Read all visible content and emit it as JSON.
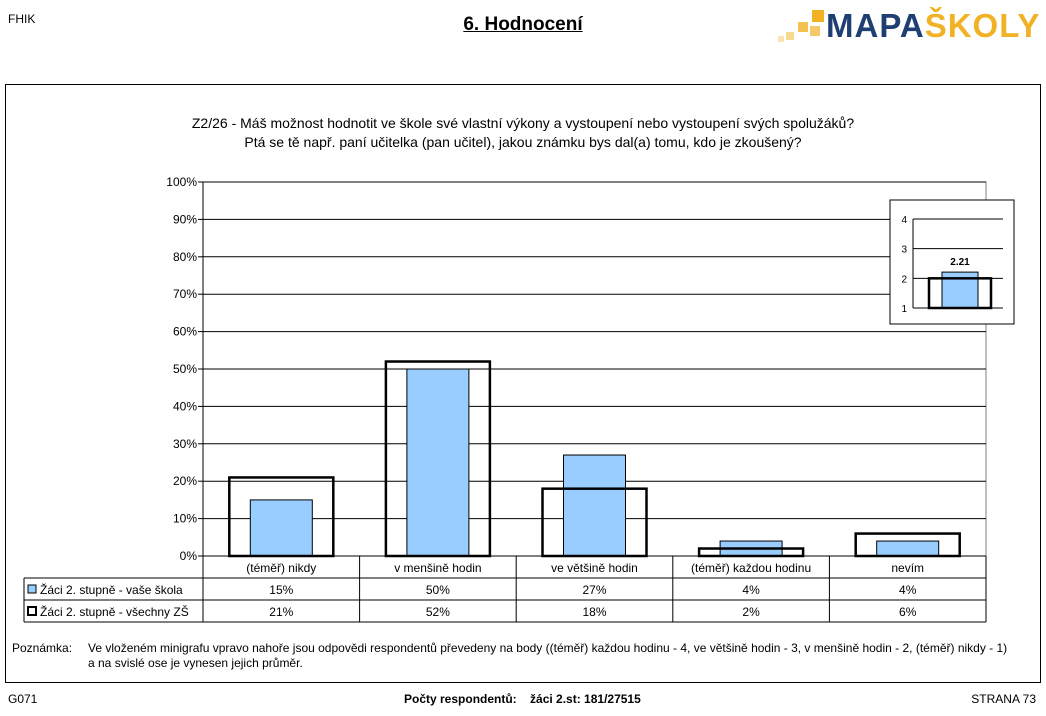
{
  "header": {
    "left_code": "FHIK",
    "title": "6. Hodnocení",
    "logo_part1": "MAPA",
    "logo_part2": "ŠKOLY"
  },
  "question": {
    "line1": "Z2/26 - Máš možnost hodnotit ve škole své vlastní výkony a vystoupení nebo vystoupení svých spolužáků?",
    "line2": "Ptá se tě např. paní učitelka (pan učitel), jakou známku bys dal(a) tomu, kdo je zkoušený?"
  },
  "chart_data": [
    {
      "type": "bar",
      "categories": [
        "(téměř) nikdy",
        "v menšině hodin",
        "ve většině hodin",
        "(téměř) každou hodinu",
        "nevím"
      ],
      "series": [
        {
          "name": "Žáci 2. stupně - vaše škola",
          "values": [
            15,
            50,
            27,
            4,
            4
          ],
          "labels": [
            "15%",
            "50%",
            "27%",
            "4%",
            "4%"
          ],
          "color": "#99ccff",
          "style": "filled bar"
        },
        {
          "name": "Žáci 2. stupně - všechny ZŠ",
          "values": [
            21,
            52,
            18,
            2,
            6
          ],
          "labels": [
            "21%",
            "52%",
            "18%",
            "2%",
            "6%"
          ],
          "color": "#000000",
          "style": "outline bar"
        }
      ],
      "ylim": [
        0,
        100
      ],
      "yticks": [
        "0%",
        "10%",
        "20%",
        "30%",
        "40%",
        "50%",
        "60%",
        "70%",
        "80%",
        "90%",
        "100%"
      ],
      "grid": true,
      "data_table": true
    },
    {
      "type": "bar",
      "series": [
        {
          "value": 2.21,
          "label": "2.21",
          "color": "#99ccff",
          "style": "filled bar"
        },
        {
          "value": 2.0,
          "color": "#000000",
          "style": "outline bar"
        }
      ],
      "ylim": [
        1,
        4
      ],
      "yticks": [
        "1",
        "2",
        "3",
        "4"
      ],
      "grid": true
    }
  ],
  "note": {
    "label": "Poznámka:",
    "line1": "Ve vloženém minigrafu vpravo nahoře jsou odpovědi respondentů převedeny na body ((téměř) každou hodinu - 4, ve většině hodin - 3, v menšině hodin - 2, (téměř) nikdy - 1)",
    "line2": "a na svislé ose je vynesen jejich průměr."
  },
  "footer": {
    "left": "G071",
    "respondents_label": "Počty respondentů:",
    "respondents_value": "žáci 2.st: 181/27515",
    "page": "STRANA 73"
  }
}
